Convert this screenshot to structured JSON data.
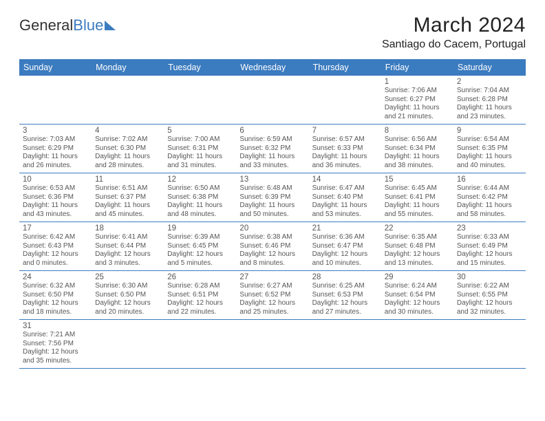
{
  "logo": {
    "text1": "General",
    "text2": "Blue"
  },
  "title": "March 2024",
  "location": "Santiago do Cacem, Portugal",
  "weekdays": [
    "Sunday",
    "Monday",
    "Tuesday",
    "Wednesday",
    "Thursday",
    "Friday",
    "Saturday"
  ],
  "colors": {
    "header_bg": "#3b7bbf",
    "header_fg": "#ffffff",
    "grid_line": "#3b7bbf",
    "text": "#555555"
  },
  "firstWeekday": 5,
  "days": [
    {
      "n": 1,
      "sr": "7:06 AM",
      "ss": "6:27 PM",
      "dl": "11 hours and 21 minutes."
    },
    {
      "n": 2,
      "sr": "7:04 AM",
      "ss": "6:28 PM",
      "dl": "11 hours and 23 minutes."
    },
    {
      "n": 3,
      "sr": "7:03 AM",
      "ss": "6:29 PM",
      "dl": "11 hours and 26 minutes."
    },
    {
      "n": 4,
      "sr": "7:02 AM",
      "ss": "6:30 PM",
      "dl": "11 hours and 28 minutes."
    },
    {
      "n": 5,
      "sr": "7:00 AM",
      "ss": "6:31 PM",
      "dl": "11 hours and 31 minutes."
    },
    {
      "n": 6,
      "sr": "6:59 AM",
      "ss": "6:32 PM",
      "dl": "11 hours and 33 minutes."
    },
    {
      "n": 7,
      "sr": "6:57 AM",
      "ss": "6:33 PM",
      "dl": "11 hours and 36 minutes."
    },
    {
      "n": 8,
      "sr": "6:56 AM",
      "ss": "6:34 PM",
      "dl": "11 hours and 38 minutes."
    },
    {
      "n": 9,
      "sr": "6:54 AM",
      "ss": "6:35 PM",
      "dl": "11 hours and 40 minutes."
    },
    {
      "n": 10,
      "sr": "6:53 AM",
      "ss": "6:36 PM",
      "dl": "11 hours and 43 minutes."
    },
    {
      "n": 11,
      "sr": "6:51 AM",
      "ss": "6:37 PM",
      "dl": "11 hours and 45 minutes."
    },
    {
      "n": 12,
      "sr": "6:50 AM",
      "ss": "6:38 PM",
      "dl": "11 hours and 48 minutes."
    },
    {
      "n": 13,
      "sr": "6:48 AM",
      "ss": "6:39 PM",
      "dl": "11 hours and 50 minutes."
    },
    {
      "n": 14,
      "sr": "6:47 AM",
      "ss": "6:40 PM",
      "dl": "11 hours and 53 minutes."
    },
    {
      "n": 15,
      "sr": "6:45 AM",
      "ss": "6:41 PM",
      "dl": "11 hours and 55 minutes."
    },
    {
      "n": 16,
      "sr": "6:44 AM",
      "ss": "6:42 PM",
      "dl": "11 hours and 58 minutes."
    },
    {
      "n": 17,
      "sr": "6:42 AM",
      "ss": "6:43 PM",
      "dl": "12 hours and 0 minutes."
    },
    {
      "n": 18,
      "sr": "6:41 AM",
      "ss": "6:44 PM",
      "dl": "12 hours and 3 minutes."
    },
    {
      "n": 19,
      "sr": "6:39 AM",
      "ss": "6:45 PM",
      "dl": "12 hours and 5 minutes."
    },
    {
      "n": 20,
      "sr": "6:38 AM",
      "ss": "6:46 PM",
      "dl": "12 hours and 8 minutes."
    },
    {
      "n": 21,
      "sr": "6:36 AM",
      "ss": "6:47 PM",
      "dl": "12 hours and 10 minutes."
    },
    {
      "n": 22,
      "sr": "6:35 AM",
      "ss": "6:48 PM",
      "dl": "12 hours and 13 minutes."
    },
    {
      "n": 23,
      "sr": "6:33 AM",
      "ss": "6:49 PM",
      "dl": "12 hours and 15 minutes."
    },
    {
      "n": 24,
      "sr": "6:32 AM",
      "ss": "6:50 PM",
      "dl": "12 hours and 18 minutes."
    },
    {
      "n": 25,
      "sr": "6:30 AM",
      "ss": "6:50 PM",
      "dl": "12 hours and 20 minutes."
    },
    {
      "n": 26,
      "sr": "6:28 AM",
      "ss": "6:51 PM",
      "dl": "12 hours and 22 minutes."
    },
    {
      "n": 27,
      "sr": "6:27 AM",
      "ss": "6:52 PM",
      "dl": "12 hours and 25 minutes."
    },
    {
      "n": 28,
      "sr": "6:25 AM",
      "ss": "6:53 PM",
      "dl": "12 hours and 27 minutes."
    },
    {
      "n": 29,
      "sr": "6:24 AM",
      "ss": "6:54 PM",
      "dl": "12 hours and 30 minutes."
    },
    {
      "n": 30,
      "sr": "6:22 AM",
      "ss": "6:55 PM",
      "dl": "12 hours and 32 minutes."
    },
    {
      "n": 31,
      "sr": "7:21 AM",
      "ss": "7:56 PM",
      "dl": "12 hours and 35 minutes."
    }
  ],
  "labels": {
    "sunrise": "Sunrise:",
    "sunset": "Sunset:",
    "daylight": "Daylight:"
  }
}
